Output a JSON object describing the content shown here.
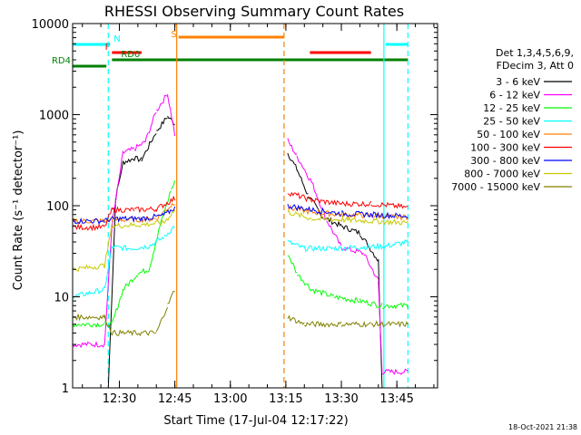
{
  "chart_data": {
    "type": "line",
    "title": "RHESSI Observing Summary Count Rates",
    "xlabel": "Start Time (17-Jul-04 12:17:22)",
    "ylabel": "Count Rate (s⁻¹ detector⁻¹)",
    "y_scale": "log",
    "ylim": [
      1,
      10000
    ],
    "xlim": [
      "12:17:22",
      "13:56:00"
    ],
    "x_ticks": [
      "12:30",
      "12:45",
      "13:00",
      "13:15",
      "13:30",
      "13:45"
    ],
    "y_ticks": [
      "1",
      "10",
      "100",
      "1000",
      "10000"
    ],
    "legend_header": [
      "Det 1,3,4,5,6,9,",
      "FDecim 3, Att 0"
    ],
    "series": [
      {
        "name": "3 - 6 keV",
        "color": "#000000",
        "points": [
          [
            "12:27:00",
            1
          ],
          [
            "12:29:00",
            120
          ],
          [
            "12:31:00",
            300
          ],
          [
            "12:34:00",
            330
          ],
          [
            "12:36:00",
            320
          ],
          [
            "12:40:00",
            650
          ],
          [
            "12:43:00",
            950
          ],
          [
            "12:45:00",
            800
          ],
          [
            "13:15:30",
            380
          ],
          [
            "13:18:00",
            250
          ],
          [
            "13:21:00",
            130
          ],
          [
            "13:25:00",
            75
          ],
          [
            "13:30:00",
            60
          ],
          [
            "13:35:00",
            50
          ],
          [
            "13:40:00",
            25
          ],
          [
            "13:41:00",
            1
          ]
        ]
      },
      {
        "name": "6 - 12 keV",
        "color": "#ff00ff",
        "points": [
          [
            "12:17:22",
            3
          ],
          [
            "12:26:00",
            3
          ],
          [
            "12:28:00",
            60
          ],
          [
            "12:31:00",
            380
          ],
          [
            "12:34:00",
            420
          ],
          [
            "12:37:00",
            500
          ],
          [
            "12:40:00",
            1100
          ],
          [
            "12:43:00",
            1700
          ],
          [
            "12:45:00",
            600
          ],
          [
            "13:15:30",
            520
          ],
          [
            "13:18:00",
            350
          ],
          [
            "13:22:00",
            180
          ],
          [
            "13:26:00",
            70
          ],
          [
            "13:30:00",
            35
          ],
          [
            "13:36:00",
            30
          ],
          [
            "13:40:00",
            15
          ],
          [
            "13:41:00",
            1.5
          ],
          [
            "13:48:00",
            1.5
          ]
        ]
      },
      {
        "name": "12 - 25 keV",
        "color": "#00ff00",
        "points": [
          [
            "12:17:22",
            5
          ],
          [
            "12:26:00",
            5
          ],
          [
            "12:28:00",
            5
          ],
          [
            "12:31:00",
            12
          ],
          [
            "12:35:00",
            18
          ],
          [
            "12:38:00",
            20
          ],
          [
            "12:41:00",
            60
          ],
          [
            "12:44:00",
            150
          ],
          [
            "12:45:00",
            180
          ],
          [
            "13:15:30",
            30
          ],
          [
            "13:18:00",
            18
          ],
          [
            "13:22:00",
            12
          ],
          [
            "13:28:00",
            10
          ],
          [
            "13:35:00",
            9
          ],
          [
            "13:41:00",
            8
          ],
          [
            "13:48:00",
            8
          ]
        ]
      },
      {
        "name": "25 - 50 keV",
        "color": "#00ffff",
        "points": [
          [
            "12:17:22",
            10
          ],
          [
            "12:26:00",
            12
          ],
          [
            "12:28:00",
            35
          ],
          [
            "12:33:00",
            34
          ],
          [
            "12:38:00",
            36
          ],
          [
            "12:42:00",
            45
          ],
          [
            "12:45:00",
            60
          ],
          [
            "13:15:30",
            40
          ],
          [
            "13:20:00",
            34
          ],
          [
            "13:28:00",
            34
          ],
          [
            "13:35:00",
            35
          ],
          [
            "13:42:00",
            36
          ],
          [
            "13:48:00",
            40
          ]
        ]
      },
      {
        "name": "50 - 100 keV",
        "color": "#ff8000",
        "points": [
          [
            "12:17:22",
            68
          ],
          [
            "12:26:00",
            68
          ],
          [
            "12:28:00",
            70
          ],
          [
            "12:34:00",
            70
          ],
          [
            "12:40:00",
            72
          ],
          [
            "12:45:00",
            110
          ],
          [
            "13:15:30",
            95
          ],
          [
            "13:22:00",
            85
          ],
          [
            "13:30:00",
            80
          ],
          [
            "13:38:00",
            78
          ],
          [
            "13:44:00",
            75
          ],
          [
            "13:48:00",
            75
          ]
        ]
      },
      {
        "name": "100 - 300 keV",
        "color": "#ff0000",
        "points": [
          [
            "12:17:22",
            58
          ],
          [
            "12:26:00",
            58
          ],
          [
            "12:28:00",
            90
          ],
          [
            "12:34:00",
            90
          ],
          [
            "12:40:00",
            92
          ],
          [
            "12:45:00",
            120
          ],
          [
            "13:15:30",
            140
          ],
          [
            "13:22:00",
            115
          ],
          [
            "13:30:00",
            105
          ],
          [
            "13:38:00",
            105
          ],
          [
            "13:44:00",
            100
          ],
          [
            "13:48:00",
            95
          ]
        ]
      },
      {
        "name": "300 - 800 keV",
        "color": "#0000ff",
        "points": [
          [
            "12:17:22",
            68
          ],
          [
            "12:26:00",
            68
          ],
          [
            "12:28:00",
            72
          ],
          [
            "12:36:00",
            72
          ],
          [
            "12:42:00",
            78
          ],
          [
            "12:45:00",
            95
          ],
          [
            "13:15:30",
            100
          ],
          [
            "13:22:00",
            90
          ],
          [
            "13:30:00",
            82
          ],
          [
            "13:38:00",
            80
          ],
          [
            "13:44:00",
            78
          ],
          [
            "13:48:00",
            77
          ]
        ]
      },
      {
        "name": "800 - 7000 keV",
        "color": "#c8c800",
        "points": [
          [
            "12:17:22",
            20
          ],
          [
            "12:26:00",
            22
          ],
          [
            "12:28:00",
            60
          ],
          [
            "12:36:00",
            62
          ],
          [
            "12:42:00",
            65
          ],
          [
            "12:45:00",
            90
          ],
          [
            "13:15:30",
            85
          ],
          [
            "13:22:00",
            72
          ],
          [
            "13:30:00",
            70
          ],
          [
            "13:38:00",
            68
          ],
          [
            "13:44:00",
            66
          ],
          [
            "13:48:00",
            65
          ]
        ]
      },
      {
        "name": "7000 - 15000 keV",
        "color": "#808000",
        "points": [
          [
            "12:17:22",
            6
          ],
          [
            "12:26:00",
            6
          ],
          [
            "12:28:00",
            4
          ],
          [
            "12:36:00",
            4
          ],
          [
            "12:40:00",
            4
          ],
          [
            "12:43:00",
            8
          ],
          [
            "12:45:00",
            12
          ],
          [
            "13:15:30",
            6
          ],
          [
            "13:20:00",
            5
          ],
          [
            "13:30:00",
            5
          ],
          [
            "13:38:00",
            5
          ],
          [
            "13:44:00",
            5
          ],
          [
            "13:48:00",
            5
          ]
        ]
      }
    ],
    "flag_bars": [
      {
        "label": "N",
        "color": "#00ffff",
        "segments": [
          [
            "12:17:22",
            "12:27:30"
          ],
          [
            "13:42:00",
            "13:48:00"
          ]
        ]
      },
      {
        "label": "F",
        "color": "#ff0000",
        "segments": [
          [
            "12:28:00",
            "12:36:00"
          ],
          [
            "13:21:30",
            "13:38:00"
          ]
        ]
      },
      {
        "label": "S",
        "color": "#ff8000",
        "segments": [
          [
            "12:46:00",
            "13:14:30"
          ]
        ]
      },
      {
        "label": "RD0",
        "color": "#008000",
        "segments": [
          [
            "12:28:00",
            "13:48:00"
          ]
        ]
      },
      {
        "label": "RD4",
        "color": "#008000",
        "segments": [
          [
            "12:17:22",
            "12:26:30"
          ]
        ]
      }
    ],
    "vertical_markers": [
      {
        "time": "12:27:00",
        "color": "#00ffff",
        "style": "dashed"
      },
      {
        "time": "12:45:30",
        "color": "#ff8000",
        "style": "solid"
      },
      {
        "time": "13:14:30",
        "color": "#ff8000",
        "style": "dashed"
      },
      {
        "time": "13:41:30",
        "color": "#00ffff",
        "style": "solid"
      },
      {
        "time": "13:48:00",
        "color": "#00ffff",
        "style": "dashed"
      }
    ],
    "grid": false,
    "legend_position": "right"
  },
  "footer": "18-Oct-2021 21:38"
}
